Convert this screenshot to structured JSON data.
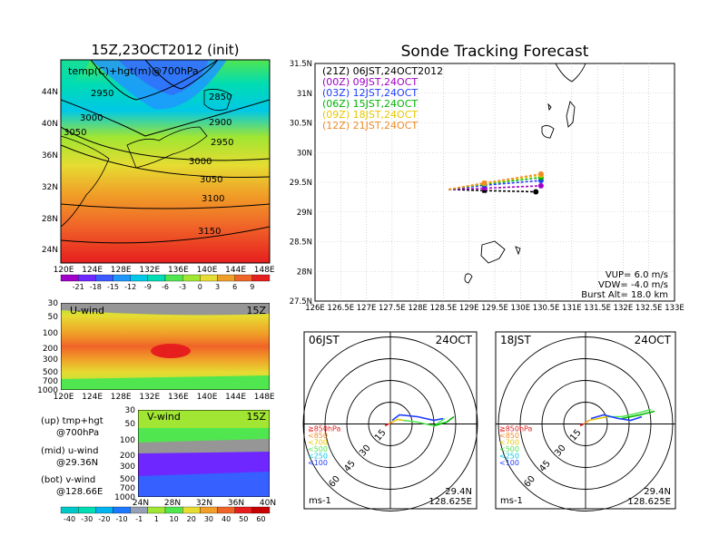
{
  "main_map": {
    "title": "15Z,23OCT2012 (init)",
    "subtitle": "temp(C)+hgt(m)@700hPa",
    "lat_ticks": [
      "44N",
      "40N",
      "36N",
      "32N",
      "28N",
      "24N"
    ],
    "lon_ticks": [
      "120E",
      "124E",
      "128E",
      "132E",
      "136E",
      "140E",
      "144E",
      "148E"
    ],
    "contour_labels": [
      "2950",
      "2850",
      "3000",
      "2900",
      "3050",
      "2950",
      "3000",
      "3050",
      "3100",
      "3150"
    ],
    "colorbar_labels": [
      "-21",
      "-18",
      "-15",
      "-12",
      "-9",
      "-6",
      "-3",
      "0",
      "3",
      "6",
      "9"
    ],
    "colorbar_colors": [
      "#a000c8",
      "#6e28ff",
      "#3c5aff",
      "#1e96ff",
      "#00c8e6",
      "#00dcb4",
      "#50e650",
      "#a0e632",
      "#e6dc32",
      "#f0a028",
      "#f06428",
      "#e61e1e"
    ]
  },
  "uwind": {
    "title": "U-wind",
    "time": "15Z",
    "y_ticks": [
      "30",
      "50",
      "100",
      "200",
      "300",
      "500",
      "700",
      "1000"
    ],
    "x_ticks": [
      "120E",
      "124E",
      "128E",
      "132E",
      "136E",
      "140E",
      "144E",
      "148E"
    ]
  },
  "vwind": {
    "title": "V-wind",
    "time": "15Z",
    "y_ticks": [
      "30",
      "50",
      "100",
      "200",
      "300",
      "500",
      "700",
      "1000"
    ],
    "x_ticks": [
      "24N",
      "28N",
      "32N",
      "36N",
      "40N"
    ],
    "colorbar_labels": [
      "-40",
      "-30",
      "-20",
      "-10",
      "-1",
      "1",
      "10",
      "20",
      "30",
      "40",
      "50",
      "60"
    ],
    "colorbar_colors": [
      "#00c8c8",
      "#00dcb4",
      "#00b4f0",
      "#1e78ff",
      "#96a0b4",
      "#a0e632",
      "#50e650",
      "#e6dc32",
      "#f0a028",
      "#f06428",
      "#e61e1e",
      "#c80000"
    ]
  },
  "legend_notes": {
    "line1a": "(up) tmp+hgt",
    "line1b": "@700hPa",
    "line2a": "(mid) u-wind",
    "line2b": "@29.36N",
    "line3a": "(bot) v-wind",
    "line3b": "@128.66E"
  },
  "tracking": {
    "title": "Sonde Tracking Forecast",
    "legend": [
      {
        "text": "(21Z) 06JST,24OCT2012",
        "color": "#000000"
      },
      {
        "text": "(00Z) 09JST,24OCT",
        "color": "#a000c8"
      },
      {
        "text": "(03Z) 12JST,24OCT",
        "color": "#1e3cff"
      },
      {
        "text": "(06Z) 15JST,24OCT",
        "color": "#00b400"
      },
      {
        "text": "(09Z) 18JST,24OCT",
        "color": "#e6c800"
      },
      {
        "text": "(12Z) 21JST,24OCT",
        "color": "#f08c28"
      }
    ],
    "lat_ticks": [
      "31.5N",
      "31N",
      "30.5N",
      "30N",
      "29.5N",
      "29N",
      "28.5N",
      "28N",
      "27.5N"
    ],
    "lon_ticks": [
      "126E",
      "126.5E",
      "127E",
      "127.5E",
      "128E",
      "128.5E",
      "129E",
      "129.5E",
      "130E",
      "130.5E",
      "131E",
      "131.5E",
      "132E",
      "132.5E",
      "133E"
    ],
    "params": [
      "VUP= 6.0 m/s",
      "VDW= -4.0 m/s",
      "Burst Alt= 18.0 km"
    ]
  },
  "chart_data": [
    {
      "type": "line",
      "title": "Sonde Tracking Forecast",
      "xlim": [
        126,
        133
      ],
      "ylim": [
        27.5,
        31.5
      ],
      "series": [
        {
          "name": "(21Z) 06JST,24OCT2012",
          "color": "#000000",
          "x": [
            128.6,
            129.3,
            130.3
          ],
          "y": [
            29.38,
            29.36,
            29.34
          ]
        },
        {
          "name": "(00Z) 09JST,24OCT",
          "color": "#a000c8",
          "x": [
            128.6,
            129.3,
            130.4
          ],
          "y": [
            29.38,
            29.4,
            29.44
          ]
        },
        {
          "name": "(03Z) 12JST,24OCT",
          "color": "#1e3cff",
          "x": [
            128.6,
            129.3,
            130.4
          ],
          "y": [
            29.38,
            29.45,
            29.53
          ]
        },
        {
          "name": "(06Z) 15JST,24OCT",
          "color": "#00b400",
          "x": [
            128.6,
            129.3,
            130.4
          ],
          "y": [
            29.38,
            29.47,
            29.58
          ]
        },
        {
          "name": "(09Z) 18JST,24OCT",
          "color": "#e6c800",
          "x": [
            128.6,
            129.3,
            130.4
          ],
          "y": [
            29.38,
            29.48,
            29.62
          ]
        },
        {
          "name": "(12Z) 21JST,24OCT",
          "color": "#f08c28",
          "x": [
            128.6,
            129.3,
            130.4
          ],
          "y": [
            29.38,
            29.49,
            29.64
          ]
        }
      ]
    }
  ],
  "hodo_left": {
    "time": "06JST",
    "date": "24OCT",
    "ring_labels": [
      "15",
      "30",
      "45",
      "60"
    ],
    "levels": [
      {
        "text": "≧850hPa",
        "color": "#e61e1e"
      },
      {
        "text": "<850",
        "color": "#f08c28"
      },
      {
        "text": "<700",
        "color": "#e6c800"
      },
      {
        "text": "<500",
        "color": "#50e650"
      },
      {
        "text": "<250",
        "color": "#00c8e6"
      },
      {
        "text": "<100",
        "color": "#1e3cff"
      }
    ],
    "unit": "ms-1",
    "lat": "29.4N",
    "lon": "128.625E"
  },
  "hodo_right": {
    "time": "18JST",
    "date": "24OCT",
    "ring_labels": [
      "15",
      "30",
      "45",
      "60"
    ],
    "levels": [
      {
        "text": "≧850hPa",
        "color": "#e61e1e"
      },
      {
        "text": "<850",
        "color": "#f08c28"
      },
      {
        "text": "<700",
        "color": "#e6c800"
      },
      {
        "text": "<500",
        "color": "#50e650"
      },
      {
        "text": "<250",
        "color": "#00c8e6"
      },
      {
        "text": "<100",
        "color": "#1e3cff"
      }
    ],
    "unit": "ms-1",
    "lat": "29.4N",
    "lon": "128.625E"
  }
}
